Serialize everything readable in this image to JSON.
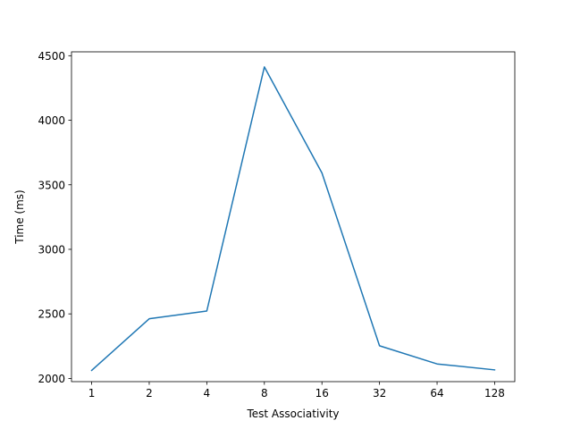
{
  "chart_data": {
    "type": "line",
    "title": "",
    "xlabel": "Test Associativity",
    "ylabel": "Time (ms)",
    "categories": [
      "1",
      "2",
      "4",
      "8",
      "16",
      "32",
      "64",
      "128"
    ],
    "series": [
      {
        "values": [
          2062,
          2462,
          2522,
          4413,
          3592,
          2253,
          2112,
          2066
        ],
        "color": "#1f77b4"
      }
    ],
    "ylim": [
      1975,
      4530
    ],
    "yticks": [
      2000,
      2500,
      3000,
      3500,
      4000,
      4500
    ],
    "grid": false,
    "legend": "none"
  }
}
